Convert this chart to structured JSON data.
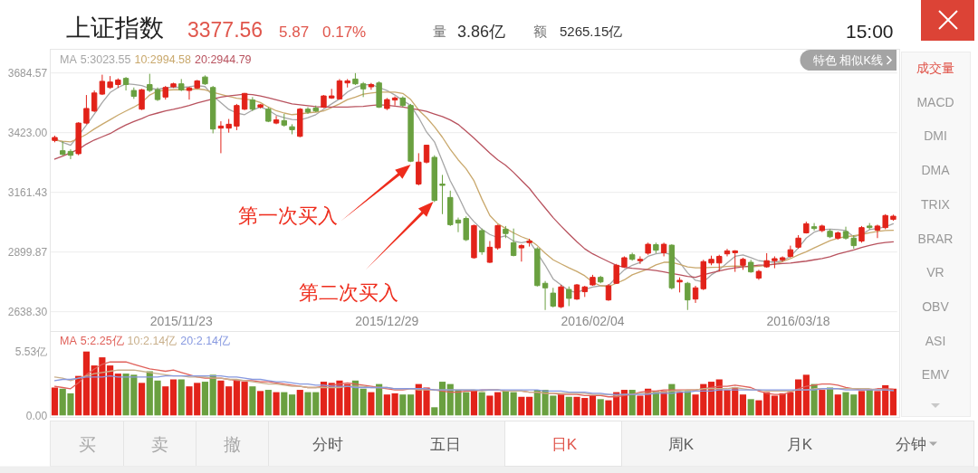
{
  "chart_data": [
    {
      "type": "other",
      "title": "上证指数",
      "annotations": [
        "3377.56",
        "5.87",
        "0.17%",
        "量",
        "3.86亿",
        "额",
        "5265.15亿",
        "15:00",
        "特色 相似K线",
        "成交量",
        "MACD",
        "DMI",
        "DMA",
        "TRIX",
        "BRAR",
        "VR",
        "OBV",
        "ASI",
        "EMV",
        "买",
        "卖",
        "撤",
        "分时",
        "五日",
        "日K",
        "周K",
        "月K",
        "分钟"
      ]
    },
    {
      "type": "candlestick",
      "categories": [
        null,
        null,
        null,
        null,
        null,
        null,
        null,
        null,
        null,
        null,
        null,
        null,
        null,
        null,
        null,
        null,
        "2015/11/23",
        null,
        null,
        null,
        null,
        null,
        null,
        null,
        null,
        null,
        null,
        null,
        null,
        null,
        null,
        null,
        null,
        null,
        null,
        null,
        null,
        null,
        null,
        null,
        null,
        null,
        "2015/12/29",
        null,
        null,
        null,
        null,
        null,
        null,
        null,
        null,
        null,
        null,
        null,
        null,
        null,
        null,
        null,
        null,
        null,
        null,
        null,
        null,
        null,
        null,
        null,
        null,
        null,
        "2016/02/04",
        null,
        null,
        null,
        null,
        null,
        null,
        null,
        null,
        null,
        null,
        null,
        null,
        null,
        null,
        null,
        null,
        null,
        null,
        null,
        null,
        null,
        null,
        null,
        null,
        null,
        "2016/03/18",
        null,
        null,
        null,
        null,
        null,
        null,
        null,
        null,
        null,
        null,
        null,
        null
      ],
      "ohlc": [
        [
          3389,
          3410,
          3381,
          3402
        ],
        [
          3344,
          3386,
          3323,
          3328
        ],
        [
          3341,
          3350,
          3307,
          3324
        ],
        [
          3331,
          3469,
          3324,
          3465
        ],
        [
          3465,
          3588,
          3460,
          3529
        ],
        [
          3518,
          3608,
          3513,
          3597
        ],
        [
          3592,
          3677,
          3588,
          3648
        ],
        [
          3621,
          3671,
          3615,
          3645
        ],
        [
          3634,
          3661,
          3619,
          3654
        ],
        [
          3661,
          3667,
          3608,
          3634
        ],
        [
          3608,
          3621,
          3571,
          3582
        ],
        [
          3526,
          3615,
          3522,
          3611
        ],
        [
          3634,
          3681,
          3601,
          3608
        ],
        [
          3611,
          3621,
          3562,
          3568
        ],
        [
          3579,
          3628,
          3568,
          3621
        ],
        [
          3624,
          3642,
          3619,
          3637
        ],
        [
          3637,
          3658,
          3605,
          3611
        ],
        [
          3608,
          3624,
          3568,
          3619
        ],
        [
          3619,
          3654,
          3615,
          3650
        ],
        [
          3667,
          3674,
          3632,
          3637
        ],
        [
          3621,
          3628,
          3420,
          3439
        ],
        [
          3443,
          3473,
          3333,
          3452
        ],
        [
          3443,
          3483,
          3423,
          3460
        ],
        [
          3452,
          3549,
          3434,
          3542
        ],
        [
          3526,
          3597,
          3522,
          3595
        ],
        [
          3566,
          3579,
          3518,
          3526
        ],
        [
          3535,
          3549,
          3529,
          3545
        ],
        [
          3526,
          3535,
          3469,
          3473
        ],
        [
          3465,
          3496,
          3460,
          3479
        ],
        [
          3476,
          3505,
          3449,
          3456
        ],
        [
          3449,
          3460,
          3416,
          3436
        ],
        [
          3407,
          3531,
          3403,
          3526
        ],
        [
          3526,
          3535,
          3505,
          3513
        ],
        [
          3531,
          3542,
          3513,
          3518
        ],
        [
          3535,
          3588,
          3531,
          3584
        ],
        [
          3575,
          3615,
          3571,
          3584
        ],
        [
          3571,
          3658,
          3568,
          3650
        ],
        [
          3641,
          3658,
          3621,
          3650
        ],
        [
          3658,
          3684,
          3632,
          3637
        ],
        [
          3637,
          3645,
          3579,
          3615
        ],
        [
          3624,
          3641,
          3611,
          3634
        ],
        [
          3641,
          3648,
          3531,
          3535
        ],
        [
          3529,
          3575,
          3522,
          3568
        ],
        [
          3566,
          3582,
          3542,
          3575
        ],
        [
          3575,
          3582,
          3535,
          3542
        ],
        [
          3542,
          3549,
          3294,
          3298
        ],
        [
          3198,
          3333,
          3192,
          3294
        ],
        [
          3294,
          3370,
          3288,
          3368
        ],
        [
          3315,
          3324,
          3119,
          3126
        ],
        [
          3198,
          3238,
          3066,
          3192
        ],
        [
          3139,
          3169,
          3014,
          3020
        ],
        [
          3040,
          3051,
          2987,
          3027
        ],
        [
          3047,
          3056,
          2948,
          2954
        ],
        [
          2875,
          3020,
          2871,
          3016
        ],
        [
          2994,
          3003,
          2888,
          2901
        ],
        [
          2855,
          2948,
          2852,
          2921
        ],
        [
          2918,
          3020,
          2910,
          3016
        ],
        [
          3000,
          3014,
          2961,
          2981
        ],
        [
          2941,
          3003,
          2881,
          2885
        ],
        [
          2918,
          2934,
          2858,
          2928
        ],
        [
          2941,
          2958,
          2924,
          2948
        ],
        [
          2914,
          2921,
          2749,
          2753
        ],
        [
          2763,
          2773,
          2646,
          2743
        ],
        [
          2720,
          2743,
          2657,
          2663
        ],
        [
          2660,
          2756,
          2654,
          2747
        ],
        [
          2736,
          2749,
          2663,
          2697
        ],
        [
          2694,
          2760,
          2690,
          2756
        ],
        [
          2726,
          2752,
          2703,
          2747
        ],
        [
          2756,
          2800,
          2752,
          2789
        ],
        [
          2789,
          2796,
          2763,
          2769
        ],
        [
          2690,
          2760,
          2686,
          2752
        ],
        [
          2763,
          2848,
          2760,
          2842
        ],
        [
          2835,
          2881,
          2831,
          2875
        ],
        [
          2888,
          2897,
          2862,
          2868
        ],
        [
          2862,
          2881,
          2848,
          2868
        ],
        [
          2895,
          2941,
          2888,
          2934
        ],
        [
          2932,
          2941,
          2895,
          2908
        ],
        [
          2897,
          2941,
          2881,
          2934
        ],
        [
          2930,
          2934,
          2736,
          2743
        ],
        [
          2769,
          2789,
          2723,
          2776
        ],
        [
          2763,
          2769,
          2646,
          2690
        ],
        [
          2694,
          2752,
          2677,
          2743
        ],
        [
          2739,
          2866,
          2733,
          2858
        ],
        [
          2852,
          2884,
          2842,
          2868
        ],
        [
          2852,
          2888,
          2815,
          2881
        ],
        [
          2892,
          2914,
          2881,
          2905
        ],
        [
          2897,
          2908,
          2813,
          2905
        ],
        [
          2842,
          2875,
          2822,
          2868
        ],
        [
          2855,
          2866,
          2809,
          2813
        ],
        [
          2786,
          2822,
          2778,
          2815
        ],
        [
          2835,
          2895,
          2831,
          2862
        ],
        [
          2862,
          2881,
          2829,
          2871
        ],
        [
          2866,
          2881,
          2858,
          2875
        ],
        [
          2881,
          2928,
          2875,
          2910
        ],
        [
          2921,
          2974,
          2914,
          2961
        ],
        [
          2984,
          3033,
          2981,
          3024
        ],
        [
          3011,
          3027,
          2994,
          3003
        ],
        [
          2994,
          3020,
          2987,
          3014
        ],
        [
          2991,
          3000,
          2961,
          2967
        ],
        [
          2961,
          2990,
          2954,
          2984
        ],
        [
          2990,
          3011,
          2954,
          2961
        ],
        [
          2961,
          2974,
          2914,
          2928
        ],
        [
          2948,
          3014,
          2941,
          3007
        ],
        [
          3014,
          3027,
          2998,
          3007
        ],
        [
          2996,
          3020,
          2961,
          3014
        ],
        [
          3007,
          3066,
          3000,
          3060
        ],
        [
          3043,
          3064,
          3037,
          3057
        ]
      ],
      "colors": [
        "#e2231a",
        "#6aa040",
        "#6aa040",
        "#e2231a",
        "#e2231a",
        "#e2231a",
        "#e2231a",
        "#e2231a",
        "#e2231a",
        "#6aa040",
        "#6aa040",
        "#e2231a",
        "#6aa040",
        "#6aa040",
        "#e2231a",
        "#e2231a",
        "#6aa040",
        "#e2231a",
        "#e2231a",
        "#6aa040",
        "#6aa040",
        "#e2231a",
        "#e2231a",
        "#e2231a",
        "#e2231a",
        "#6aa040",
        "#e2231a",
        "#6aa040",
        "#e2231a",
        "#6aa040",
        "#6aa040",
        "#e2231a",
        "#6aa040",
        "#6aa040",
        "#e2231a",
        "#e2231a",
        "#e2231a",
        "#e2231a",
        "#6aa040",
        "#6aa040",
        "#e2231a",
        "#6aa040",
        "#e2231a",
        "#e2231a",
        "#6aa040",
        "#6aa040",
        "#e2231a",
        "#e2231a",
        "#6aa040",
        "#6aa040",
        "#6aa040",
        "#6aa040",
        "#6aa040",
        "#e2231a",
        "#6aa040",
        "#e2231a",
        "#e2231a",
        "#6aa040",
        "#6aa040",
        "#e2231a",
        "#e2231a",
        "#6aa040",
        "#6aa040",
        "#6aa040",
        "#e2231a",
        "#6aa040",
        "#e2231a",
        "#e2231a",
        "#e2231a",
        "#6aa040",
        "#e2231a",
        "#e2231a",
        "#e2231a",
        "#6aa040",
        "#e2231a",
        "#e2231a",
        "#6aa040",
        "#e2231a",
        "#6aa040",
        "#e2231a",
        "#6aa040",
        "#e2231a",
        "#e2231a",
        "#e2231a",
        "#e2231a",
        "#e2231a",
        "#e2231a",
        "#e2231a",
        "#6aa040",
        "#e2231a",
        "#e2231a",
        "#e2231a",
        "#e2231a",
        "#e2231a",
        "#e2231a",
        "#e2231a",
        "#6aa040",
        "#e2231a",
        "#6aa040",
        "#e2231a",
        "#6aa040",
        "#6aa040",
        "#e2231a",
        "#6aa040",
        "#e2231a",
        "#e2231a",
        "#e2231a"
      ],
      "series": [
        {
          "type": "line",
          "name": "5:3023.55",
          "color": "#a6a6a6",
          "values": [
            3397,
            3381,
            3368,
            3410,
            3456,
            3505,
            3555,
            3599,
            3621,
            3637,
            3634,
            3629,
            3617,
            3613,
            3619,
            3623,
            3621,
            3624,
            3629,
            3625,
            3584,
            3555,
            3525,
            3509,
            3502,
            3522,
            3535,
            3522,
            3500,
            3489,
            3481,
            3479,
            3489,
            3502,
            3526,
            3549,
            3571,
            3601,
            3621,
            3632,
            3634,
            3621,
            3608,
            3588,
            3564,
            3542,
            3489,
            3426,
            3383,
            3298,
            3212,
            3146,
            3073,
            3033,
            3000,
            2977,
            2963,
            2971,
            2948,
            2941,
            2948,
            2895,
            2842,
            2782,
            2756,
            2730,
            2723,
            2736,
            2747,
            2752,
            2752,
            2789,
            2822,
            2842,
            2855,
            2881,
            2892,
            2897,
            2888,
            2855,
            2809,
            2776,
            2769,
            2800,
            2822,
            2852,
            2881,
            2887,
            2875,
            2862,
            2858,
            2855,
            2862,
            2881,
            2918,
            2961,
            2987,
            2998,
            3000,
            2998,
            2994,
            2967,
            2977,
            2998,
            3003,
            3010,
            3024
          ]
        },
        {
          "type": "line",
          "name": "10:2994.58",
          "color": "#c9a86c",
          "values": [
            3390,
            3386,
            3383,
            3397,
            3416,
            3439,
            3460,
            3480,
            3500,
            3518,
            3535,
            3555,
            3588,
            3605,
            3609,
            3611,
            3611,
            3612,
            3615,
            3611,
            3600,
            3591,
            3582,
            3574,
            3570,
            3566,
            3555,
            3535,
            3519,
            3509,
            3502,
            3505,
            3510,
            3513,
            3518,
            3533,
            3549,
            3568,
            3579,
            3592,
            3597,
            3601,
            3601,
            3601,
            3595,
            3568,
            3522,
            3489,
            3449,
            3403,
            3350,
            3304,
            3265,
            3212,
            3132,
            3060,
            3024,
            3003,
            2984,
            2967,
            2954,
            2928,
            2895,
            2866,
            2848,
            2831,
            2815,
            2796,
            2768,
            2752,
            2749,
            2763,
            2778,
            2800,
            2813,
            2826,
            2844,
            2855,
            2855,
            2846,
            2835,
            2831,
            2831,
            2833,
            2834,
            2837,
            2839,
            2838,
            2835,
            2838,
            2842,
            2847,
            2858,
            2871,
            2887,
            2901,
            2918,
            2934,
            2950,
            2961,
            2967,
            2971,
            2977,
            2984,
            2990,
            2994,
            2995
          ]
        },
        {
          "type": "line",
          "name": "20:2944.79",
          "color": "#b8525e",
          "values": [
            3307,
            3320,
            3335,
            3350,
            3373,
            3391,
            3405,
            3419,
            3439,
            3457,
            3472,
            3485,
            3500,
            3509,
            3518,
            3525,
            3533,
            3542,
            3553,
            3562,
            3571,
            3579,
            3584,
            3588,
            3592,
            3590,
            3584,
            3576,
            3567,
            3558,
            3549,
            3545,
            3541,
            3537,
            3535,
            3535,
            3535,
            3535,
            3537,
            3538,
            3542,
            3545,
            3543,
            3539,
            3535,
            3529,
            3523,
            3516,
            3505,
            3494,
            3479,
            3459,
            3430,
            3399,
            3366,
            3334,
            3304,
            3280,
            3249,
            3214,
            3179,
            3135,
            3093,
            3051,
            3014,
            2979,
            2945,
            2914,
            2892,
            2875,
            2858,
            2842,
            2833,
            2829,
            2826,
            2823,
            2819,
            2813,
            2806,
            2800,
            2793,
            2789,
            2800,
            2809,
            2817,
            2825,
            2831,
            2835,
            2839,
            2843,
            2844,
            2847,
            2850,
            2852,
            2856,
            2860,
            2866,
            2871,
            2879,
            2891,
            2900,
            2909,
            2920,
            2929,
            2937,
            2942,
            2945
          ]
        }
      ],
      "legend_title": "MA",
      "legend": "top left",
      "ylim": [
        2638.3,
        3684.57
      ],
      "yticks": [
        {
          "value": 3684.57,
          "label": "3684.57"
        },
        {
          "value": 3423,
          "label": "3423.00"
        },
        {
          "value": 3161.43,
          "label": "3161.43"
        },
        {
          "value": 2899.87,
          "label": "2899.87"
        },
        {
          "value": 2638.3,
          "label": "2638.30"
        }
      ],
      "grid": "y",
      "annotations": [
        "第一次买入",
        "第二次买入"
      ]
    },
    {
      "type": "bar",
      "categories": [
        null,
        null,
        null,
        null,
        null,
        null,
        null,
        null,
        null,
        null,
        null,
        null,
        null,
        null,
        null,
        null,
        null,
        null,
        null,
        null,
        null,
        null,
        null,
        null,
        null,
        null,
        null,
        null,
        null,
        null,
        null,
        null,
        null,
        null,
        null,
        null,
        null,
        null,
        null,
        null,
        null,
        null,
        null,
        null,
        null,
        null,
        null,
        null,
        null,
        null,
        null,
        null,
        null,
        null,
        null,
        null,
        null,
        null,
        null,
        null,
        null,
        null,
        null,
        null,
        null,
        null,
        null,
        null,
        null,
        null,
        null,
        null,
        null,
        null,
        null,
        null,
        null,
        null,
        null,
        null,
        null,
        null,
        null,
        null,
        null,
        null,
        null,
        null,
        null,
        null,
        null,
        null,
        null,
        null,
        null,
        null,
        null,
        null,
        null,
        null,
        null,
        null,
        null,
        null,
        null,
        null,
        null
      ],
      "series": [
        {
          "type": "bar",
          "colors": [
            "#e2231a",
            "#6aa040",
            "#6aa040",
            "#e2231a",
            "#e2231a",
            "#e2231a",
            "#e2231a",
            "#e2231a",
            "#e2231a",
            "#6aa040",
            "#6aa040",
            "#e2231a",
            "#6aa040",
            "#6aa040",
            "#e2231a",
            "#e2231a",
            "#6aa040",
            "#e2231a",
            "#e2231a",
            "#6aa040",
            "#6aa040",
            "#e2231a",
            "#e2231a",
            "#e2231a",
            "#e2231a",
            "#6aa040",
            "#e2231a",
            "#6aa040",
            "#e2231a",
            "#6aa040",
            "#6aa040",
            "#e2231a",
            "#6aa040",
            "#6aa040",
            "#e2231a",
            "#e2231a",
            "#e2231a",
            "#e2231a",
            "#6aa040",
            "#6aa040",
            "#e2231a",
            "#6aa040",
            "#e2231a",
            "#e2231a",
            "#6aa040",
            "#6aa040",
            "#e2231a",
            "#e2231a",
            "#6aa040",
            "#6aa040",
            "#6aa040",
            "#6aa040",
            "#6aa040",
            "#e2231a",
            "#6aa040",
            "#e2231a",
            "#e2231a",
            "#6aa040",
            "#6aa040",
            "#e2231a",
            "#e2231a",
            "#6aa040",
            "#6aa040",
            "#6aa040",
            "#e2231a",
            "#6aa040",
            "#e2231a",
            "#e2231a",
            "#e2231a",
            "#6aa040",
            "#e2231a",
            "#e2231a",
            "#e2231a",
            "#6aa040",
            "#e2231a",
            "#e2231a",
            "#6aa040",
            "#e2231a",
            "#6aa040",
            "#e2231a",
            "#6aa040",
            "#e2231a",
            "#e2231a",
            "#e2231a",
            "#e2231a",
            "#e2231a",
            "#e2231a",
            "#e2231a",
            "#6aa040",
            "#e2231a",
            "#e2231a",
            "#e2231a",
            "#e2231a",
            "#e2231a",
            "#e2231a",
            "#e2231a",
            "#6aa040",
            "#e2231a",
            "#6aa040",
            "#e2231a",
            "#6aa040",
            "#6aa040",
            "#e2231a",
            "#6aa040",
            "#e2231a",
            "#e2231a",
            "#e2231a"
          ],
          "values": [
            2.4,
            2.3,
            1.9,
            3.4,
            5.5,
            4.3,
            5.0,
            4.3,
            3.6,
            3.6,
            3.5,
            2.8,
            3.8,
            3.0,
            2.5,
            3.1,
            3.1,
            2.5,
            2.8,
            2.9,
            3.5,
            3.0,
            2.5,
            3.0,
            2.9,
            2.5,
            2.1,
            2.2,
            2.0,
            2.0,
            1.8,
            2.2,
            2.0,
            2.0,
            2.9,
            2.8,
            3.0,
            2.7,
            3.0,
            2.3,
            2.0,
            2.7,
            1.8,
            1.9,
            1.8,
            1.8,
            2.7,
            2.4,
            0.7,
            2.9,
            2.7,
            2.2,
            2.0,
            2.2,
            2.0,
            1.7,
            2.0,
            2.1,
            2.0,
            1.6,
            1.6,
            2.2,
            2.2,
            1.7,
            1.8,
            1.6,
            1.6,
            1.5,
            1.7,
            1.4,
            1.3,
            2.0,
            2.2,
            2.2,
            1.7,
            2.3,
            2.1,
            2.1,
            2.7,
            2.0,
            2.1,
            1.8,
            2.7,
            2.9,
            3.1,
            2.2,
            2.4,
            1.8,
            1.4,
            1.3,
            2.0,
            1.7,
            1.9,
            2.0,
            3.1,
            3.5,
            2.7,
            2.2,
            2.4,
            1.8,
            2.0,
            1.8,
            2.1,
            2.2,
            2.1,
            2.6,
            2.3
          ]
        },
        {
          "type": "line",
          "name": "5:2.25亿",
          "color": "#e0615a",
          "values": [
            2.5,
            2.4,
            2.3,
            2.8,
            3.5,
            4.0,
            4.4,
            4.6,
            4.6,
            4.6,
            4.4,
            4.2,
            4.0,
            3.9,
            3.8,
            3.9,
            3.7,
            3.5,
            3.3,
            3.2,
            3.2,
            3.2,
            3.1,
            3.0,
            3.0,
            3.0,
            2.9,
            2.9,
            2.8,
            2.7,
            2.6,
            2.5,
            2.4,
            2.4,
            2.5,
            2.6,
            2.7,
            2.8,
            2.7,
            2.6,
            2.5,
            2.4,
            2.3,
            2.2,
            2.2,
            2.3,
            2.3,
            2.3,
            2.2,
            2.1,
            2.0,
            2.0,
            2.1,
            2.1,
            2.2,
            2.2,
            2.2,
            2.1,
            2.1,
            2.1,
            2.0,
            2.0,
            1.9,
            1.9,
            1.8,
            1.8,
            1.8,
            1.7,
            1.7,
            1.7,
            1.6,
            1.6,
            1.7,
            1.8,
            2.0,
            2.1,
            2.1,
            2.2,
            2.2,
            2.2,
            2.2,
            2.2,
            2.3,
            2.4,
            2.5,
            2.5,
            2.6,
            2.5,
            2.4,
            2.1,
            1.9,
            1.8,
            1.8,
            2.0,
            2.3,
            2.5,
            2.6,
            2.7,
            2.7,
            2.6,
            2.4,
            2.3,
            2.2,
            2.2,
            2.3,
            2.3,
            2.25
          ]
        },
        {
          "type": "line",
          "name": "10:2.14亿",
          "color": "#c9b08c",
          "values": [
            3.3,
            3.2,
            3.0,
            3.2,
            3.4,
            3.6,
            3.7,
            3.8,
            3.9,
            3.9,
            3.9,
            3.8,
            3.7,
            3.6,
            3.5,
            3.4,
            3.4,
            3.3,
            3.3,
            3.3,
            3.2,
            3.2,
            3.1,
            3.1,
            3.0,
            2.9,
            2.8,
            2.7,
            2.7,
            2.6,
            2.5,
            2.5,
            2.4,
            2.4,
            2.4,
            2.4,
            2.4,
            2.5,
            2.5,
            2.5,
            2.4,
            2.4,
            2.4,
            2.3,
            2.3,
            2.3,
            2.2,
            2.2,
            2.2,
            2.2,
            2.2,
            2.2,
            2.2,
            2.2,
            2.1,
            2.2,
            2.2,
            2.1,
            2.1,
            2.1,
            2.0,
            2.0,
            1.9,
            1.9,
            1.9,
            1.9,
            1.9,
            1.9,
            1.8,
            1.8,
            1.8,
            1.7,
            1.8,
            1.8,
            1.9,
            1.9,
            2.0,
            2.0,
            2.1,
            2.1,
            2.2,
            2.2,
            2.3,
            2.3,
            2.3,
            2.3,
            2.4,
            2.3,
            2.2,
            2.2,
            2.1,
            2.1,
            2.1,
            2.1,
            2.2,
            2.2,
            2.3,
            2.3,
            2.3,
            2.3,
            2.3,
            2.3,
            2.3,
            2.3,
            2.2,
            2.2,
            2.14
          ]
        },
        {
          "type": "line",
          "name": "20:2.14亿",
          "color": "#8799e0",
          "values": [
            3.0,
            3.1,
            3.1,
            3.2,
            3.3,
            3.3,
            3.3,
            3.4,
            3.3,
            3.3,
            3.3,
            3.3,
            3.3,
            3.3,
            3.4,
            3.4,
            3.4,
            3.4,
            3.4,
            3.4,
            3.4,
            3.4,
            3.3,
            3.3,
            3.2,
            3.1,
            3.1,
            3.0,
            2.9,
            2.9,
            2.8,
            2.7,
            2.7,
            2.6,
            2.6,
            2.5,
            2.5,
            2.5,
            2.4,
            2.4,
            2.4,
            2.4,
            2.4,
            2.3,
            2.3,
            2.3,
            2.3,
            2.3,
            2.2,
            2.2,
            2.2,
            2.2,
            2.2,
            2.2,
            2.2,
            2.2,
            2.2,
            2.2,
            2.2,
            2.2,
            2.2,
            2.2,
            2.1,
            2.1,
            2.1,
            2.0,
            2.0,
            2.0,
            1.9,
            1.9,
            1.8,
            1.8,
            1.8,
            1.8,
            1.8,
            1.8,
            1.9,
            1.9,
            1.9,
            2.0,
            2.0,
            2.1,
            2.1,
            2.1,
            2.2,
            2.2,
            2.2,
            2.2,
            2.2,
            2.2,
            2.2,
            2.2,
            2.2,
            2.2,
            2.2,
            2.2,
            2.2,
            2.3,
            2.3,
            2.3,
            2.2,
            2.2,
            2.2,
            2.2,
            2.2,
            2.2,
            2.14
          ]
        }
      ],
      "legend_title": "MA",
      "legend": "top left",
      "ylim": [
        0,
        5.53
      ],
      "yticks": [
        {
          "value": 5.53,
          "label": "5.53亿"
        },
        {
          "value": 0,
          "label": "0.00"
        }
      ],
      "tick_labels": "y"
    }
  ]
}
